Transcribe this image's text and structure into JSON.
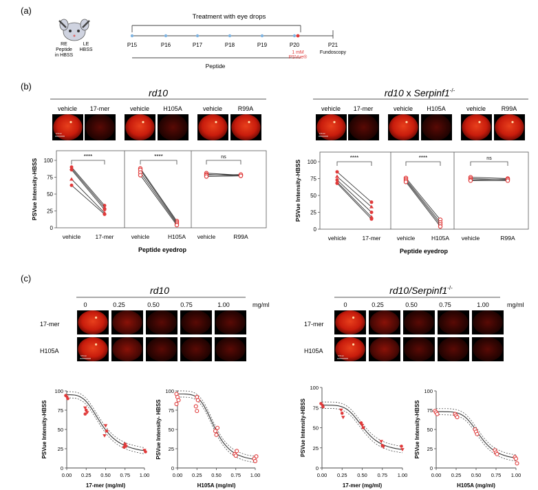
{
  "colors": {
    "red": "#e03a3a",
    "fundus_red": "#d01e10",
    "dark": "#222222",
    "line": "#555555"
  },
  "panel_labels": {
    "a": "(a)",
    "b": "(b)",
    "c": "(c)"
  },
  "a": {
    "treatment_title": "Treatment with eye drops",
    "mouse": {
      "re": [
        "RE",
        "Peptide",
        "in HBSS"
      ],
      "le": [
        "LE",
        "HBSS"
      ]
    },
    "days": [
      "P15",
      "P16",
      "P17",
      "P18",
      "P19",
      "P20",
      "P21"
    ],
    "psvue": [
      "1 mM",
      "PSVue®"
    ],
    "fundoscopy": "Fundoscopy",
    "peptide_label": "Peptide"
  },
  "b": {
    "titles": {
      "left": "rd10",
      "right_main": "rd10",
      "right_x": " x ",
      "right_gene": "Serpinf1",
      "right_sup": "-/-"
    },
    "fundus_pairs": [
      [
        "vehicle",
        "17-mer"
      ],
      [
        "vehicle",
        "H105A"
      ],
      [
        "vehicle",
        "R99A"
      ]
    ],
    "ylabel": "PSVue  Intensity-HBSS",
    "xlabel": "Peptide eyedrop",
    "yticks": [
      0,
      25,
      50,
      75,
      100
    ],
    "sig": [
      "****",
      "****",
      "ns"
    ],
    "scalebar": "0.5mm"
  },
  "c": {
    "titles": {
      "left": "rd10",
      "right_main": "rd10/",
      "right_gene": "Serpinf1",
      "right_sup": "-/-"
    },
    "conc_labels": [
      "0",
      "0.25",
      "0.50",
      "0.75",
      "1.00"
    ],
    "unit": "mg/ml",
    "rows": [
      "17-mer",
      "H105A"
    ],
    "ylabels": [
      "PSVue  Intensity-HBSS",
      "PSVue Intensity- HBSS",
      "PSVue  Intensity-HBSS",
      "PSVue  Intensity-HBSS"
    ],
    "xlabels": [
      "17-mer (mg/ml)",
      "H105A (mg/ml)",
      "17-mer (mg/ml)",
      "H105A (mg/ml)"
    ],
    "xticks": [
      "0.00",
      "0.25",
      "0.50",
      "0.75",
      "1.00"
    ],
    "yticks": [
      0,
      25,
      50,
      75,
      100
    ],
    "scalebar": "0.5mm"
  },
  "chart_data": [
    {
      "type": "line",
      "id": "b_rd10_17mer",
      "categories": [
        "vehicle",
        "17-mer"
      ],
      "ylim": [
        0,
        100
      ],
      "series": [
        {
          "values": [
            90,
            33
          ]
        },
        {
          "values": [
            88,
            30
          ]
        },
        {
          "values": [
            86,
            27
          ]
        },
        {
          "values": [
            72,
            22
          ]
        },
        {
          "values": [
            63,
            20
          ]
        }
      ],
      "annotation": "****"
    },
    {
      "type": "line",
      "id": "b_rd10_H105A",
      "categories": [
        "vehicle",
        "H105A"
      ],
      "ylim": [
        0,
        100
      ],
      "series": [
        {
          "values": [
            88,
            10
          ]
        },
        {
          "values": [
            86,
            8
          ]
        },
        {
          "values": [
            82,
            6
          ]
        },
        {
          "values": [
            78,
            4
          ]
        }
      ],
      "annotation": "****"
    },
    {
      "type": "line",
      "id": "b_rd10_R99A",
      "categories": [
        "vehicle",
        "R99A"
      ],
      "ylim": [
        0,
        100
      ],
      "series": [
        {
          "values": [
            81,
            78
          ]
        },
        {
          "values": [
            79,
            77
          ]
        },
        {
          "values": [
            78,
            79
          ]
        },
        {
          "values": [
            76,
            77
          ]
        }
      ],
      "annotation": "ns"
    },
    {
      "type": "line",
      "id": "b_serp_17mer",
      "categories": [
        "vehicle",
        "17-mer"
      ],
      "ylim": [
        0,
        100
      ],
      "series": [
        {
          "values": [
            85,
            40
          ]
        },
        {
          "values": [
            78,
            33
          ]
        },
        {
          "values": [
            73,
            25
          ]
        },
        {
          "values": [
            70,
            18
          ]
        },
        {
          "values": [
            68,
            15
          ]
        }
      ],
      "annotation": "****"
    },
    {
      "type": "line",
      "id": "b_serp_H105A",
      "categories": [
        "vehicle",
        "H105A"
      ],
      "ylim": [
        0,
        100
      ],
      "series": [
        {
          "values": [
            76,
            14
          ]
        },
        {
          "values": [
            74,
            10
          ]
        },
        {
          "values": [
            72,
            7
          ]
        },
        {
          "values": [
            70,
            4
          ]
        }
      ],
      "annotation": "****"
    },
    {
      "type": "line",
      "id": "b_serp_R99A",
      "categories": [
        "vehicle",
        "R99A"
      ],
      "ylim": [
        0,
        100
      ],
      "series": [
        {
          "values": [
            77,
            75
          ]
        },
        {
          "values": [
            75,
            73
          ]
        },
        {
          "values": [
            73,
            74
          ]
        },
        {
          "values": [
            72,
            72
          ]
        }
      ],
      "annotation": "ns"
    },
    {
      "type": "scatter",
      "id": "c_rd10_17mer",
      "xlim": [
        0,
        1
      ],
      "ylim": [
        0,
        100
      ],
      "x": [
        0,
        0,
        0,
        0.25,
        0.25,
        0.25,
        0.25,
        0.5,
        0.5,
        0.5,
        0.75,
        0.75,
        0.75,
        1,
        1
      ],
      "y": [
        94,
        92,
        90,
        78,
        75,
        72,
        70,
        55,
        48,
        42,
        31,
        28,
        27,
        23,
        21
      ],
      "fit": {
        "top": 95,
        "bottom": 18,
        "ic50": 0.45,
        "hill": 3.5
      }
    },
    {
      "type": "scatter",
      "id": "c_rd10_H105A",
      "xlim": [
        0,
        1
      ],
      "ylim": [
        0,
        100
      ],
      "x": [
        0,
        0,
        0,
        0,
        0.25,
        0.25,
        0.25,
        0.25,
        0.5,
        0.5,
        0.5,
        0.75,
        0.75,
        0.75,
        1,
        1,
        1
      ],
      "y": [
        96,
        92,
        88,
        83,
        92,
        88,
        80,
        74,
        52,
        48,
        43,
        22,
        18,
        16,
        15,
        12,
        9
      ],
      "fit": {
        "top": 96,
        "bottom": 8,
        "ic50": 0.48,
        "hill": 4.5
      }
    },
    {
      "type": "scatter",
      "id": "c_serp_17mer",
      "xlim": [
        0,
        1
      ],
      "ylim": [
        0,
        100
      ],
      "x": [
        0,
        0,
        0,
        0.25,
        0.25,
        0.25,
        0.5,
        0.5,
        0.5,
        0.75,
        0.75,
        0.75,
        1,
        1
      ],
      "y": [
        80,
        78,
        76,
        72,
        68,
        63,
        56,
        53,
        50,
        33,
        28,
        26,
        27,
        23
      ],
      "fit": {
        "top": 78,
        "bottom": 20,
        "ic50": 0.52,
        "hill": 4.5
      }
    },
    {
      "type": "scatter",
      "id": "c_serp_H105A",
      "xlim": [
        0,
        1
      ],
      "ylim": [
        0,
        100
      ],
      "x": [
        0,
        0,
        0,
        0.25,
        0.25,
        0.25,
        0.5,
        0.5,
        0.5,
        0.75,
        0.75,
        0.75,
        1,
        1,
        1
      ],
      "y": [
        74,
        72,
        70,
        70,
        68,
        66,
        50,
        47,
        44,
        23,
        20,
        18,
        14,
        12,
        6
      ],
      "fit": {
        "top": 73,
        "bottom": 10,
        "ic50": 0.55,
        "hill": 5
      }
    }
  ]
}
